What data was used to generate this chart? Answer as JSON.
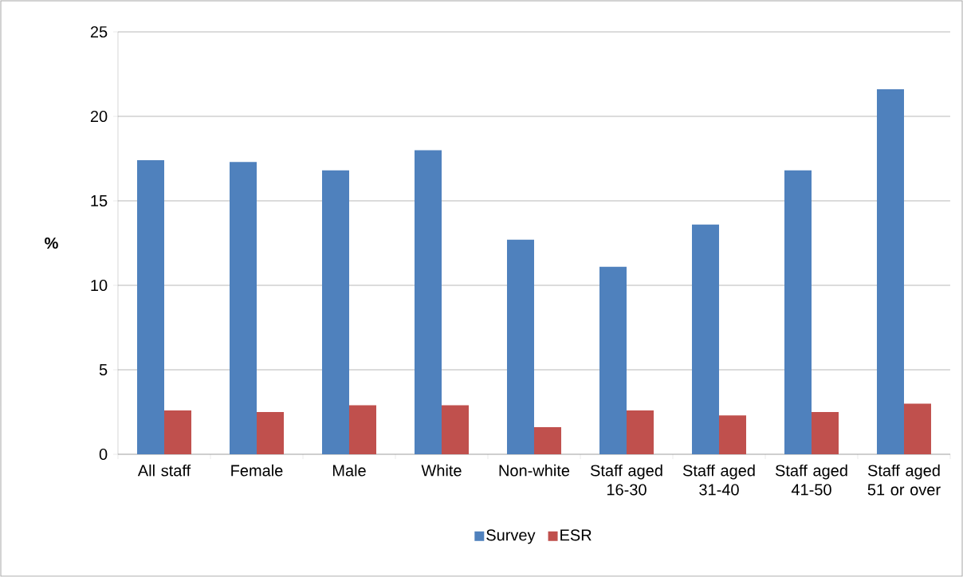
{
  "chart_data": {
    "type": "bar",
    "ylabel": "%",
    "categories": [
      "All staff",
      "Female",
      "Male",
      "White",
      "Non-white",
      "Staff aged 16-30",
      "Staff aged 31-40",
      "Staff aged 41-50",
      "Staff aged 51 or over"
    ],
    "series": [
      {
        "name": "Survey",
        "color": "#4f81bd",
        "values": [
          17.4,
          17.3,
          16.8,
          18.0,
          12.7,
          11.1,
          13.6,
          16.8,
          21.6
        ]
      },
      {
        "name": "ESR",
        "color": "#c0504d",
        "values": [
          2.6,
          2.5,
          2.9,
          2.9,
          1.6,
          2.6,
          2.3,
          2.5,
          3.0
        ]
      }
    ],
    "ylim": [
      0,
      25
    ],
    "yticks": [
      0,
      5,
      10,
      15,
      20,
      25
    ],
    "grid": "y",
    "legend": "bottom"
  }
}
